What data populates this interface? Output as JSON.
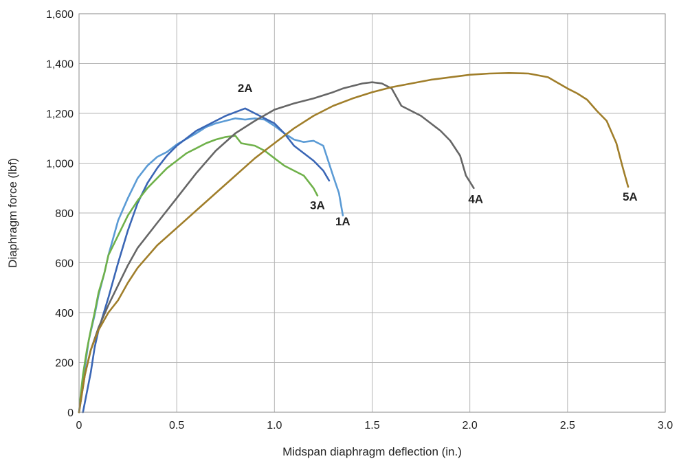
{
  "chart_data": {
    "type": "line",
    "title": "",
    "xlabel": "Midspan diaphragm deflection (in.)",
    "ylabel": "Diaphragm force (lbf)",
    "xlim": [
      0,
      3.0
    ],
    "ylim": [
      0,
      1600
    ],
    "x_ticks": [
      0,
      0.5,
      1.0,
      1.5,
      2.0,
      2.5,
      3.0
    ],
    "x_tick_labels": [
      "0",
      "0.5",
      "1.0",
      "1.5",
      "2.0",
      "2.5",
      "3.0"
    ],
    "y_ticks": [
      0,
      200,
      400,
      600,
      800,
      1000,
      1200,
      1400,
      1600
    ],
    "y_tick_labels": [
      "0",
      "200",
      "400",
      "600",
      "800",
      "1,000",
      "1,200",
      "1,400",
      "1,600"
    ],
    "grid": true,
    "legend": "none",
    "series": [
      {
        "name": "1A",
        "color": "#5b9bd5",
        "points": [
          [
            0.0,
            0
          ],
          [
            0.01,
            60
          ],
          [
            0.03,
            180
          ],
          [
            0.05,
            290
          ],
          [
            0.08,
            390
          ],
          [
            0.1,
            470
          ],
          [
            0.13,
            560
          ],
          [
            0.15,
            630
          ],
          [
            0.2,
            770
          ],
          [
            0.25,
            860
          ],
          [
            0.3,
            940
          ],
          [
            0.35,
            990
          ],
          [
            0.4,
            1025
          ],
          [
            0.45,
            1045
          ],
          [
            0.5,
            1075
          ],
          [
            0.6,
            1120
          ],
          [
            0.65,
            1145
          ],
          [
            0.7,
            1160
          ],
          [
            0.75,
            1170
          ],
          [
            0.8,
            1180
          ],
          [
            0.85,
            1175
          ],
          [
            0.9,
            1180
          ],
          [
            0.95,
            1175
          ],
          [
            1.0,
            1150
          ],
          [
            1.05,
            1120
          ],
          [
            1.1,
            1095
          ],
          [
            1.15,
            1085
          ],
          [
            1.2,
            1090
          ],
          [
            1.25,
            1070
          ],
          [
            1.3,
            950
          ],
          [
            1.33,
            880
          ],
          [
            1.35,
            790
          ]
        ]
      },
      {
        "name": "2A",
        "color": "#3a66b5",
        "points": [
          [
            0.02,
            0
          ],
          [
            0.04,
            80
          ],
          [
            0.06,
            160
          ],
          [
            0.08,
            260
          ],
          [
            0.1,
            330
          ],
          [
            0.15,
            460
          ],
          [
            0.2,
            600
          ],
          [
            0.25,
            730
          ],
          [
            0.3,
            840
          ],
          [
            0.35,
            920
          ],
          [
            0.4,
            980
          ],
          [
            0.45,
            1030
          ],
          [
            0.5,
            1070
          ],
          [
            0.55,
            1100
          ],
          [
            0.6,
            1130
          ],
          [
            0.65,
            1150
          ],
          [
            0.7,
            1170
          ],
          [
            0.75,
            1190
          ],
          [
            0.8,
            1205
          ],
          [
            0.85,
            1220
          ],
          [
            0.9,
            1200
          ],
          [
            0.95,
            1180
          ],
          [
            1.0,
            1160
          ],
          [
            1.05,
            1120
          ],
          [
            1.1,
            1070
          ],
          [
            1.15,
            1040
          ],
          [
            1.2,
            1010
          ],
          [
            1.25,
            970
          ],
          [
            1.28,
            930
          ]
        ]
      },
      {
        "name": "3A",
        "color": "#6fb14a",
        "points": [
          [
            0.0,
            0
          ],
          [
            0.01,
            80
          ],
          [
            0.02,
            150
          ],
          [
            0.04,
            250
          ],
          [
            0.06,
            330
          ],
          [
            0.08,
            400
          ],
          [
            0.1,
            480
          ],
          [
            0.13,
            560
          ],
          [
            0.15,
            630
          ],
          [
            0.2,
            710
          ],
          [
            0.25,
            790
          ],
          [
            0.3,
            850
          ],
          [
            0.35,
            900
          ],
          [
            0.4,
            940
          ],
          [
            0.45,
            980
          ],
          [
            0.5,
            1010
          ],
          [
            0.55,
            1040
          ],
          [
            0.6,
            1060
          ],
          [
            0.65,
            1080
          ],
          [
            0.7,
            1095
          ],
          [
            0.75,
            1105
          ],
          [
            0.8,
            1110
          ],
          [
            0.83,
            1080
          ],
          [
            0.9,
            1070
          ],
          [
            0.95,
            1050
          ],
          [
            1.0,
            1020
          ],
          [
            1.05,
            990
          ],
          [
            1.1,
            970
          ],
          [
            1.15,
            950
          ],
          [
            1.2,
            900
          ],
          [
            1.22,
            870
          ]
        ]
      },
      {
        "name": "4A",
        "color": "#666666",
        "points": [
          [
            0.0,
            0
          ],
          [
            0.03,
            150
          ],
          [
            0.06,
            250
          ],
          [
            0.1,
            340
          ],
          [
            0.15,
            430
          ],
          [
            0.2,
            510
          ],
          [
            0.25,
            590
          ],
          [
            0.3,
            660
          ],
          [
            0.4,
            760
          ],
          [
            0.5,
            860
          ],
          [
            0.6,
            960
          ],
          [
            0.7,
            1050
          ],
          [
            0.8,
            1120
          ],
          [
            0.9,
            1170
          ],
          [
            1.0,
            1215
          ],
          [
            1.1,
            1240
          ],
          [
            1.2,
            1260
          ],
          [
            1.3,
            1285
          ],
          [
            1.35,
            1300
          ],
          [
            1.4,
            1310
          ],
          [
            1.45,
            1320
          ],
          [
            1.5,
            1325
          ],
          [
            1.55,
            1320
          ],
          [
            1.6,
            1300
          ],
          [
            1.65,
            1230
          ],
          [
            1.7,
            1210
          ],
          [
            1.75,
            1190
          ],
          [
            1.8,
            1160
          ],
          [
            1.85,
            1130
          ],
          [
            1.9,
            1090
          ],
          [
            1.95,
            1030
          ],
          [
            1.98,
            950
          ],
          [
            2.02,
            900
          ]
        ]
      },
      {
        "name": "5A",
        "color": "#a07e2a",
        "points": [
          [
            0.0,
            0
          ],
          [
            0.03,
            150
          ],
          [
            0.06,
            250
          ],
          [
            0.1,
            330
          ],
          [
            0.15,
            400
          ],
          [
            0.2,
            450
          ],
          [
            0.25,
            520
          ],
          [
            0.3,
            580
          ],
          [
            0.4,
            670
          ],
          [
            0.5,
            740
          ],
          [
            0.6,
            810
          ],
          [
            0.7,
            880
          ],
          [
            0.8,
            950
          ],
          [
            0.9,
            1020
          ],
          [
            1.0,
            1080
          ],
          [
            1.1,
            1140
          ],
          [
            1.2,
            1190
          ],
          [
            1.3,
            1230
          ],
          [
            1.4,
            1260
          ],
          [
            1.5,
            1285
          ],
          [
            1.6,
            1305
          ],
          [
            1.7,
            1320
          ],
          [
            1.8,
            1335
          ],
          [
            1.9,
            1345
          ],
          [
            2.0,
            1355
          ],
          [
            2.1,
            1360
          ],
          [
            2.2,
            1362
          ],
          [
            2.3,
            1360
          ],
          [
            2.4,
            1345
          ],
          [
            2.5,
            1300
          ],
          [
            2.55,
            1280
          ],
          [
            2.6,
            1255
          ],
          [
            2.65,
            1210
          ],
          [
            2.7,
            1170
          ],
          [
            2.75,
            1080
          ],
          [
            2.78,
            990
          ],
          [
            2.81,
            905
          ]
        ]
      }
    ],
    "annotations": [
      {
        "text": "1A",
        "x": 1.35,
        "y": 750
      },
      {
        "text": "2A",
        "x": 0.85,
        "y": 1285
      },
      {
        "text": "3A",
        "x": 1.22,
        "y": 815
      },
      {
        "text": "4A",
        "x": 2.03,
        "y": 840
      },
      {
        "text": "5A",
        "x": 2.82,
        "y": 850
      }
    ]
  }
}
